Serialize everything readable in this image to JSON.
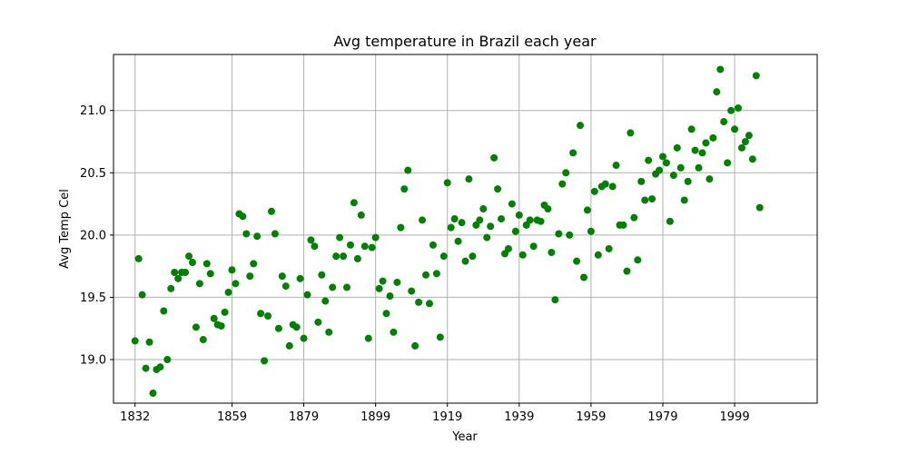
{
  "chart_data": {
    "type": "scatter",
    "title": "Avg temperature in Brazil each year",
    "xlabel": "Year",
    "ylabel": "Avg Temp Cel",
    "xlim": [
      1826,
      2022
    ],
    "ylim": [
      18.65,
      21.45
    ],
    "x_ticks": [
      1832,
      1859,
      1879,
      1899,
      1919,
      1939,
      1959,
      1979,
      1999
    ],
    "y_ticks": [
      19.0,
      19.5,
      20.0,
      20.5,
      21.0
    ],
    "y_tick_labels": [
      "19.0",
      "19.5",
      "20.0",
      "20.5",
      "21.0"
    ],
    "grid": true,
    "marker_color": "#008000",
    "points": [
      [
        1832,
        19.15
      ],
      [
        1833,
        19.81
      ],
      [
        1834,
        19.52
      ],
      [
        1835,
        18.93
      ],
      [
        1836,
        19.14
      ],
      [
        1837,
        18.73
      ],
      [
        1838,
        18.92
      ],
      [
        1839,
        18.94
      ],
      [
        1840,
        19.39
      ],
      [
        1841,
        19.0
      ],
      [
        1842,
        19.57
      ],
      [
        1843,
        19.7
      ],
      [
        1844,
        19.65
      ],
      [
        1845,
        19.7
      ],
      [
        1846,
        19.7
      ],
      [
        1847,
        19.83
      ],
      [
        1848,
        19.78
      ],
      [
        1849,
        19.26
      ],
      [
        1850,
        19.61
      ],
      [
        1851,
        19.16
      ],
      [
        1852,
        19.77
      ],
      [
        1853,
        19.69
      ],
      [
        1854,
        19.33
      ],
      [
        1855,
        19.28
      ],
      [
        1856,
        19.27
      ],
      [
        1857,
        19.38
      ],
      [
        1858,
        19.54
      ],
      [
        1859,
        19.72
      ],
      [
        1860,
        19.61
      ],
      [
        1861,
        20.17
      ],
      [
        1862,
        20.15
      ],
      [
        1863,
        20.01
      ],
      [
        1864,
        19.67
      ],
      [
        1865,
        19.77
      ],
      [
        1866,
        19.99
      ],
      [
        1867,
        19.37
      ],
      [
        1868,
        18.99
      ],
      [
        1869,
        19.35
      ],
      [
        1870,
        20.19
      ],
      [
        1871,
        20.01
      ],
      [
        1872,
        19.25
      ],
      [
        1873,
        19.67
      ],
      [
        1874,
        19.59
      ],
      [
        1875,
        19.11
      ],
      [
        1876,
        19.28
      ],
      [
        1877,
        19.26
      ],
      [
        1878,
        19.65
      ],
      [
        1879,
        19.17
      ],
      [
        1880,
        19.52
      ],
      [
        1881,
        19.96
      ],
      [
        1882,
        19.91
      ],
      [
        1883,
        19.3
      ],
      [
        1884,
        19.68
      ],
      [
        1885,
        19.47
      ],
      [
        1886,
        19.22
      ],
      [
        1887,
        19.58
      ],
      [
        1888,
        19.83
      ],
      [
        1889,
        19.98
      ],
      [
        1890,
        19.83
      ],
      [
        1891,
        19.58
      ],
      [
        1892,
        19.92
      ],
      [
        1893,
        20.26
      ],
      [
        1894,
        19.81
      ],
      [
        1895,
        20.16
      ],
      [
        1896,
        19.91
      ],
      [
        1897,
        19.17
      ],
      [
        1898,
        19.9
      ],
      [
        1899,
        19.98
      ],
      [
        1900,
        19.57
      ],
      [
        1901,
        19.63
      ],
      [
        1902,
        19.37
      ],
      [
        1903,
        19.51
      ],
      [
        1904,
        19.22
      ],
      [
        1905,
        19.62
      ],
      [
        1906,
        20.06
      ],
      [
        1907,
        20.37
      ],
      [
        1908,
        20.52
      ],
      [
        1909,
        19.55
      ],
      [
        1910,
        19.11
      ],
      [
        1911,
        19.46
      ],
      [
        1912,
        20.12
      ],
      [
        1913,
        19.68
      ],
      [
        1914,
        19.45
      ],
      [
        1915,
        19.92
      ],
      [
        1916,
        19.69
      ],
      [
        1917,
        19.18
      ],
      [
        1918,
        19.83
      ],
      [
        1919,
        20.42
      ],
      [
        1920,
        20.06
      ],
      [
        1921,
        20.13
      ],
      [
        1922,
        19.95
      ],
      [
        1923,
        20.1
      ],
      [
        1924,
        19.79
      ],
      [
        1925,
        20.45
      ],
      [
        1926,
        19.83
      ],
      [
        1927,
        20.08
      ],
      [
        1928,
        20.12
      ],
      [
        1929,
        20.21
      ],
      [
        1930,
        19.98
      ],
      [
        1931,
        20.07
      ],
      [
        1932,
        20.62
      ],
      [
        1933,
        20.37
      ],
      [
        1934,
        20.13
      ],
      [
        1935,
        19.85
      ],
      [
        1936,
        19.89
      ],
      [
        1937,
        20.25
      ],
      [
        1938,
        20.03
      ],
      [
        1939,
        20.16
      ],
      [
        1940,
        19.84
      ],
      [
        1941,
        20.08
      ],
      [
        1942,
        20.12
      ],
      [
        1943,
        19.91
      ],
      [
        1944,
        20.12
      ],
      [
        1945,
        20.11
      ],
      [
        1946,
        20.24
      ],
      [
        1947,
        20.21
      ],
      [
        1948,
        19.86
      ],
      [
        1949,
        19.48
      ],
      [
        1950,
        20.01
      ],
      [
        1951,
        20.41
      ],
      [
        1952,
        20.5
      ],
      [
        1953,
        20.0
      ],
      [
        1954,
        20.66
      ],
      [
        1955,
        19.79
      ],
      [
        1956,
        20.88
      ],
      [
        1957,
        19.66
      ],
      [
        1958,
        20.2
      ],
      [
        1959,
        20.03
      ],
      [
        1960,
        20.35
      ],
      [
        1961,
        19.84
      ],
      [
        1962,
        20.39
      ],
      [
        1963,
        20.41
      ],
      [
        1964,
        19.89
      ],
      [
        1965,
        20.39
      ],
      [
        1966,
        20.56
      ],
      [
        1967,
        20.08
      ],
      [
        1968,
        20.08
      ],
      [
        1969,
        19.71
      ],
      [
        1970,
        20.82
      ],
      [
        1971,
        20.14
      ],
      [
        1972,
        19.8
      ],
      [
        1973,
        20.43
      ],
      [
        1974,
        20.28
      ],
      [
        1975,
        20.6
      ],
      [
        1976,
        20.29
      ],
      [
        1977,
        20.49
      ],
      [
        1978,
        20.52
      ],
      [
        1979,
        20.63
      ],
      [
        1980,
        20.58
      ],
      [
        1981,
        20.11
      ],
      [
        1982,
        20.48
      ],
      [
        1983,
        20.7
      ],
      [
        1984,
        20.54
      ],
      [
        1985,
        20.28
      ],
      [
        1986,
        20.43
      ],
      [
        1987,
        20.85
      ],
      [
        1988,
        20.68
      ],
      [
        1989,
        20.54
      ],
      [
        1990,
        20.66
      ],
      [
        1991,
        20.74
      ],
      [
        1992,
        20.45
      ],
      [
        1993,
        20.78
      ],
      [
        1994,
        21.15
      ],
      [
        1995,
        21.33
      ],
      [
        1996,
        20.91
      ],
      [
        1997,
        20.58
      ],
      [
        1998,
        21.0
      ],
      [
        1999,
        20.85
      ],
      [
        2000,
        21.02
      ],
      [
        2001,
        20.7
      ],
      [
        2002,
        20.75
      ],
      [
        2003,
        20.8
      ],
      [
        2004,
        20.61
      ],
      [
        2005,
        21.28
      ],
      [
        2006,
        20.22
      ]
    ]
  }
}
